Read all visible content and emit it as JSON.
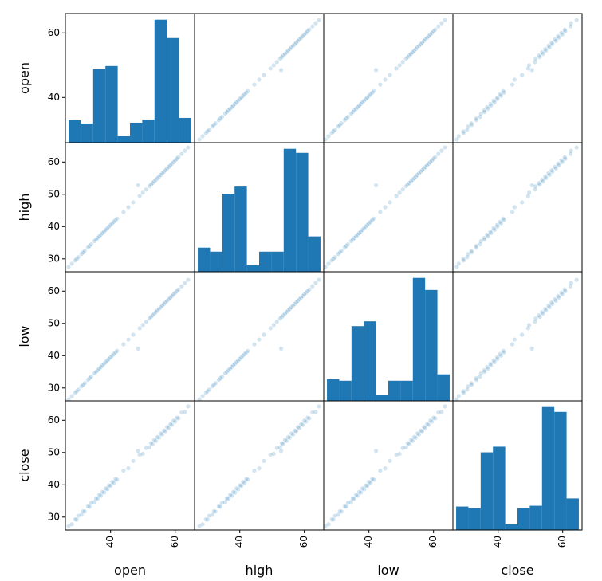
{
  "chart_data": {
    "type": "scatter_matrix",
    "color": "#1f77b4",
    "alpha": 0.2,
    "series": [
      {
        "name": "open",
        "lim": [
          26,
          66
        ],
        "xticks": [
          40,
          60
        ],
        "yticks": [
          40,
          60
        ],
        "values": [
          27,
          28,
          29,
          29.5,
          30,
          31,
          31.5,
          32,
          33,
          33.5,
          34,
          35,
          35.5,
          36,
          36.5,
          37,
          37.5,
          38,
          38.5,
          39,
          39.5,
          40,
          40.5,
          41,
          41.5,
          42,
          44,
          45.5,
          47,
          48.5,
          49,
          50,
          51,
          52,
          52.5,
          53,
          53.5,
          54,
          54.5,
          55,
          55.5,
          56,
          56.5,
          57,
          57.5,
          58,
          58.5,
          59,
          59.5,
          60,
          60.5,
          61,
          62,
          63,
          64
        ],
        "bins": [
          27,
          30.8,
          34.6,
          38.4,
          42.2,
          46,
          49.8,
          53.6,
          57.4,
          61.2,
          65
        ],
        "counts": [
          28,
          24,
          92,
          96,
          8,
          25,
          29,
          154,
          131,
          31
        ]
      },
      {
        "name": "high",
        "lim": [
          26,
          66
        ],
        "xticks": [
          40,
          60
        ],
        "yticks": [
          30,
          40,
          50,
          60
        ],
        "values": [
          27.5,
          28.5,
          29.5,
          30,
          30.5,
          31.5,
          32,
          32.5,
          33.5,
          34,
          34.5,
          35.5,
          36,
          36.5,
          37,
          37.5,
          38,
          38.5,
          39,
          39.5,
          40,
          40.5,
          41,
          41.5,
          42,
          42.5,
          44.5,
          46,
          47.5,
          52.8,
          49.5,
          50.5,
          51.5,
          52.5,
          53,
          53.5,
          54,
          54.5,
          55,
          55.5,
          56,
          56.5,
          57,
          57.5,
          58,
          58.5,
          59,
          59.5,
          60,
          60.5,
          61,
          61.5,
          62.5,
          63.5,
          64.5
        ],
        "bins": [
          27,
          30.8,
          34.6,
          38.4,
          42.2,
          46,
          49.8,
          53.6,
          57.4,
          61.2,
          65
        ],
        "counts": [
          30,
          25,
          97,
          106,
          8,
          25,
          25,
          153,
          148,
          44
        ]
      },
      {
        "name": "low",
        "lim": [
          26,
          66
        ],
        "xticks": [
          40,
          60
        ],
        "yticks": [
          30,
          40,
          50,
          60
        ],
        "values": [
          26.5,
          27.5,
          28.5,
          29,
          29.5,
          30.5,
          31,
          31.5,
          32.5,
          33,
          33.5,
          34.5,
          35,
          35.5,
          36,
          36.5,
          37,
          37.5,
          38,
          38.5,
          39,
          39.5,
          40,
          40.5,
          41,
          41.5,
          43.5,
          45,
          46.5,
          42.2,
          48.5,
          49.5,
          50.5,
          51.5,
          52,
          52.5,
          53,
          53.5,
          54,
          54.5,
          55,
          55.5,
          56,
          56.5,
          57,
          57.5,
          58,
          58.5,
          59,
          59.5,
          60,
          60.5,
          61.5,
          62.5,
          63.5
        ],
        "bins": [
          27,
          30.8,
          34.6,
          38.4,
          42.2,
          46,
          49.8,
          53.6,
          57.4,
          61.2,
          65
        ],
        "counts": [
          27,
          25,
          93,
          99,
          7,
          25,
          25,
          153,
          138,
          33
        ]
      },
      {
        "name": "close",
        "lim": [
          26,
          66
        ],
        "xticks": [
          40,
          60
        ],
        "yticks": [
          30,
          40,
          50,
          60
        ],
        "values": [
          27.2,
          27.8,
          29.3,
          29.2,
          30.4,
          30.7,
          31.8,
          31.7,
          33.3,
          33.2,
          34.4,
          34.7,
          35.8,
          35.7,
          36.9,
          36.6,
          37.8,
          37.6,
          38.9,
          38.6,
          39.8,
          39.7,
          40.9,
          40.6,
          41.8,
          41.6,
          44.4,
          45.1,
          47.4,
          50.5,
          49.3,
          49.6,
          51.4,
          51.6,
          52.9,
          52.6,
          53.9,
          53.6,
          54.8,
          54.6,
          55.9,
          55.6,
          56.8,
          56.6,
          57.9,
          57.6,
          58.8,
          58.6,
          59.9,
          59.6,
          60.8,
          60.6,
          62.4,
          62.6,
          64.3
        ],
        "bins": [
          27,
          30.8,
          34.6,
          38.4,
          42.2,
          46,
          49.8,
          53.6,
          57.4,
          61.2,
          65
        ],
        "counts": [
          29,
          27,
          96,
          103,
          7,
          27,
          30,
          152,
          146,
          39
        ]
      }
    ]
  }
}
